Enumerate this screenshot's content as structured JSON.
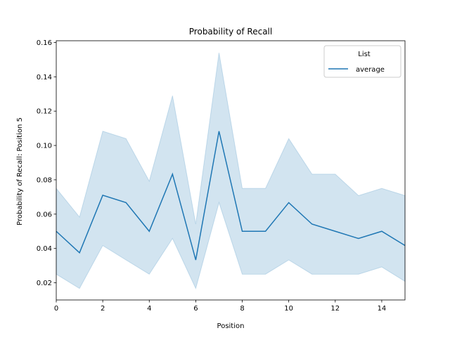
{
  "chart_data": {
    "type": "line",
    "title": "Probability of Recall",
    "xlabel": "Position",
    "ylabel": "Probability of Recall: Position 5",
    "xlim": [
      0,
      15
    ],
    "ylim": [
      0.01,
      0.161
    ],
    "xticks": [
      0,
      2,
      4,
      6,
      8,
      10,
      12,
      14
    ],
    "xtick_labels": [
      "0",
      "2",
      "4",
      "6",
      "8",
      "10",
      "12",
      "14"
    ],
    "yticks": [
      0.02,
      0.04,
      0.06,
      0.08,
      0.1,
      0.12,
      0.14,
      0.16
    ],
    "ytick_labels": [
      "0.02",
      "0.04",
      "0.06",
      "0.08",
      "0.10",
      "0.12",
      "0.14",
      "0.16"
    ],
    "grid": false,
    "legend": {
      "title": "List",
      "placement": "top-right"
    },
    "x": [
      0,
      1,
      2,
      3,
      4,
      5,
      6,
      7,
      8,
      9,
      10,
      11,
      12,
      13,
      14,
      15
    ],
    "series": [
      {
        "name": "average",
        "color": "#1f77b4",
        "values": [
          0.05,
          0.0375,
          0.071,
          0.0667,
          0.05,
          0.0833,
          0.0333,
          0.1083,
          0.05,
          0.05,
          0.0667,
          0.0542,
          0.05,
          0.0458,
          0.05,
          0.0417
        ],
        "ci_lower": [
          0.025,
          0.0167,
          0.0417,
          0.0333,
          0.025,
          0.0458,
          0.0167,
          0.0667,
          0.025,
          0.025,
          0.0333,
          0.025,
          0.025,
          0.025,
          0.0292,
          0.0208
        ],
        "ci_upper": [
          0.075,
          0.0583,
          0.1083,
          0.104,
          0.0792,
          0.129,
          0.0542,
          0.154,
          0.075,
          0.075,
          0.104,
          0.0833,
          0.0833,
          0.0708,
          0.075,
          0.0708
        ],
        "band_color": "#1f77b4"
      }
    ]
  }
}
